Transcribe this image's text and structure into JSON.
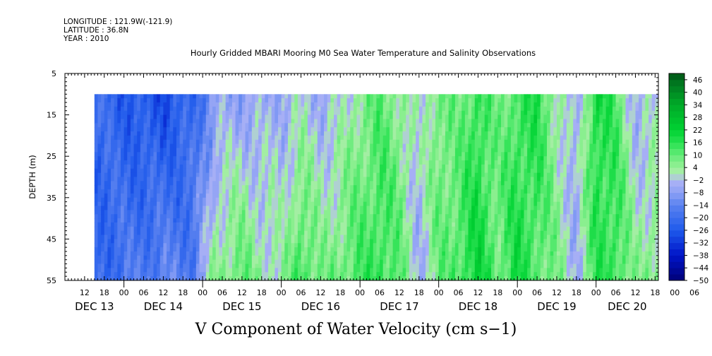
{
  "header": {
    "longitude": "LONGITUDE : 121.9W(-121.9)",
    "latitude": "LATITUDE : 36.8N",
    "year": "YEAR : 2010"
  },
  "chart_data": {
    "type": "heatmap",
    "title": "Hourly Gridded MBARI Mooring M0 Sea Water Temperature and Salinity Observations",
    "xlabel": "V Component of Water Velocity (cm s−1)",
    "ylabel": "DEPTH (m)",
    "y_ticks": [
      "5",
      "15",
      "25",
      "35",
      "45",
      "55"
    ],
    "ylim": [
      5,
      55
    ],
    "y_data_range": [
      10,
      55
    ],
    "x_hour_ticks": [
      "12",
      "18",
      "00",
      "06",
      "12",
      "18",
      "00",
      "06",
      "12",
      "18",
      "00",
      "06",
      "12",
      "18",
      "00",
      "06",
      "12",
      "18",
      "00",
      "06",
      "12",
      "18",
      "00",
      "06",
      "12",
      "18",
      "00",
      "06",
      "12",
      "18",
      "00",
      "06"
    ],
    "x_day_labels": [
      "DEC 13",
      "DEC 14",
      "DEC 15",
      "DEC 16",
      "DEC 17",
      "DEC 18",
      "DEC 19",
      "DEC 20"
    ],
    "x_range_hours_from_dec13_00": [
      6,
      187
    ],
    "data_start_hours": 15,
    "colorbar_ticks": [
      "46",
      "40",
      "34",
      "28",
      "22",
      "16",
      "10",
      "4",
      "−2",
      "−8",
      "−14",
      "−20",
      "−26",
      "−32",
      "−38",
      "−44",
      "−50"
    ],
    "color_levels": [
      -50,
      -47,
      -44,
      -41,
      -38,
      -35,
      -32,
      -29,
      -26,
      -23,
      -20,
      -17,
      -14,
      -11,
      -8,
      -5,
      -2,
      1,
      4,
      7,
      10,
      13,
      16,
      19,
      22,
      25,
      28,
      31,
      34,
      37,
      40,
      43,
      46,
      49
    ],
    "column_values_by_time": [
      {
        "hour": 15,
        "v_top": -20,
        "v_bottom": -22
      },
      {
        "hour": 24,
        "v_top": -24,
        "v_bottom": -18
      },
      {
        "hour": 36,
        "v_top": -28,
        "v_bottom": -14
      },
      {
        "hour": 45,
        "v_top": -22,
        "v_bottom": -16
      },
      {
        "hour": 52,
        "v_top": -8,
        "v_bottom": 6
      },
      {
        "hour": 60,
        "v_top": -6,
        "v_bottom": 10
      },
      {
        "hour": 66,
        "v_top": -6,
        "v_bottom": 4
      },
      {
        "hour": 72,
        "v_top": -4,
        "v_bottom": 2
      },
      {
        "hour": 78,
        "v_top": -2,
        "v_bottom": 16
      },
      {
        "hour": 84,
        "v_top": -4,
        "v_bottom": 6
      },
      {
        "hour": 90,
        "v_top": -2,
        "v_bottom": 10
      },
      {
        "hour": 96,
        "v_top": 6,
        "v_bottom": 12
      },
      {
        "hour": 102,
        "v_top": 10,
        "v_bottom": 16
      },
      {
        "hour": 108,
        "v_top": 6,
        "v_bottom": 10
      },
      {
        "hour": 114,
        "v_top": -2,
        "v_bottom": -4
      },
      {
        "hour": 120,
        "v_top": 10,
        "v_bottom": 8
      },
      {
        "hour": 126,
        "v_top": 6,
        "v_bottom": 14
      },
      {
        "hour": 132,
        "v_top": 16,
        "v_bottom": 20
      },
      {
        "hour": 138,
        "v_top": 6,
        "v_bottom": 10
      },
      {
        "hour": 144,
        "v_top": 14,
        "v_bottom": 18
      },
      {
        "hour": 150,
        "v_top": 16,
        "v_bottom": 12
      },
      {
        "hour": 156,
        "v_top": 4,
        "v_bottom": 6
      },
      {
        "hour": 162,
        "v_top": -6,
        "v_bottom": -4
      },
      {
        "hour": 168,
        "v_top": 20,
        "v_bottom": 14
      },
      {
        "hour": 174,
        "v_top": 12,
        "v_bottom": 16
      },
      {
        "hour": 180,
        "v_top": -4,
        "v_bottom": 4
      },
      {
        "hour": 186,
        "v_top": -2,
        "v_bottom": 8
      }
    ],
    "grid": false,
    "legend": "right colorbar"
  }
}
